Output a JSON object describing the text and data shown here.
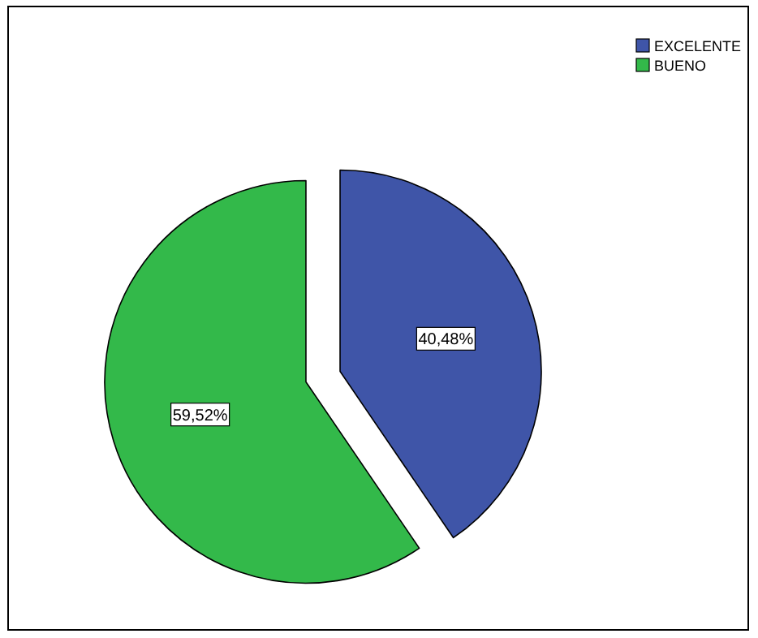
{
  "chart_data": {
    "type": "pie",
    "categories": [
      "EXCELENTE",
      "BUENO"
    ],
    "values": [
      40.48,
      59.52
    ],
    "colors": [
      "#3f55a8",
      "#33b94a"
    ],
    "value_labels": [
      "40,48%",
      "59,52%"
    ],
    "legend": "top right"
  }
}
